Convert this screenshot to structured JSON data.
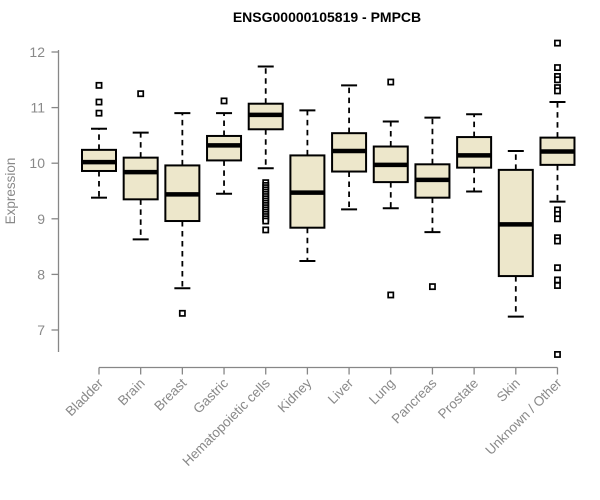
{
  "chart_data": {
    "type": "boxplot",
    "title": "ENSG00000105819 - PMPCB",
    "xlabel": "",
    "ylabel": "Expression",
    "ylim": [
      7,
      12
    ],
    "yticks": [
      7,
      8,
      9,
      10,
      11,
      12
    ],
    "grid": false,
    "legend": "none",
    "categories": [
      "Bladder",
      "Brain",
      "Breast",
      "Gastric",
      "Hematopoietic cells",
      "Kidney",
      "Liver",
      "Lung",
      "Pancreas",
      "Prostate",
      "Skin",
      "Unknown / Other"
    ],
    "boxes": [
      {
        "label": "Bladder",
        "low": 9.38,
        "q1": 9.86,
        "median": 10.02,
        "q3": 10.24,
        "high": 10.62,
        "outliers": [
          10.9,
          11.1,
          11.4
        ]
      },
      {
        "label": "Brain",
        "low": 8.63,
        "q1": 9.35,
        "median": 9.84,
        "q3": 10.1,
        "high": 10.55,
        "outliers": [
          11.25
        ]
      },
      {
        "label": "Breast",
        "low": 7.75,
        "q1": 8.96,
        "median": 9.44,
        "q3": 9.96,
        "high": 10.9,
        "outliers": [
          7.3
        ]
      },
      {
        "label": "Gastric",
        "low": 9.45,
        "q1": 10.05,
        "median": 10.32,
        "q3": 10.49,
        "high": 10.9,
        "outliers": [
          11.12
        ]
      },
      {
        "label": "Hematopoietic cells",
        "low": 9.91,
        "q1": 10.61,
        "median": 10.87,
        "q3": 11.07,
        "high": 11.74,
        "outliers": [
          9.65,
          9.6,
          9.56,
          9.52,
          9.48,
          9.44,
          9.4,
          9.36,
          9.32,
          9.28,
          9.24,
          9.2,
          9.16,
          9.12,
          9.08,
          9.04,
          9.0,
          8.96,
          8.8
        ]
      },
      {
        "label": "Kidney",
        "low": 8.24,
        "q1": 8.84,
        "median": 9.47,
        "q3": 10.14,
        "high": 10.95,
        "outliers": []
      },
      {
        "label": "Liver",
        "low": 9.17,
        "q1": 9.85,
        "median": 10.22,
        "q3": 10.54,
        "high": 11.4,
        "outliers": []
      },
      {
        "label": "Lung",
        "low": 9.19,
        "q1": 9.66,
        "median": 9.97,
        "q3": 10.3,
        "high": 10.75,
        "outliers": [
          11.46,
          7.63
        ]
      },
      {
        "label": "Pancreas",
        "low": 8.76,
        "q1": 9.38,
        "median": 9.7,
        "q3": 9.98,
        "high": 10.82,
        "outliers": [
          7.78
        ]
      },
      {
        "label": "Prostate",
        "low": 9.49,
        "q1": 9.92,
        "median": 10.14,
        "q3": 10.47,
        "high": 10.88,
        "outliers": []
      },
      {
        "label": "Skin",
        "low": 7.24,
        "q1": 7.97,
        "median": 8.9,
        "q3": 9.88,
        "high": 10.22,
        "outliers": []
      },
      {
        "label": "Unknown / Other",
        "low": 9.31,
        "q1": 9.97,
        "median": 10.21,
        "q3": 10.46,
        "high": 11.1,
        "outliers": [
          12.16,
          11.72,
          11.56,
          11.5,
          11.36,
          11.3,
          9.16,
          9.08,
          9.0,
          8.66,
          8.6,
          8.12,
          7.9,
          7.8,
          6.56
        ]
      }
    ],
    "style": {
      "box_fill": "#EDE7CB",
      "box_border": "#000000",
      "median_color": "#000000",
      "whisker_color": "#000000",
      "axis_color": "#878787",
      "label_color": "#898989",
      "title_color": "#000000",
      "background": "#FFFFFF",
      "outlier_marker": "open-square"
    }
  }
}
